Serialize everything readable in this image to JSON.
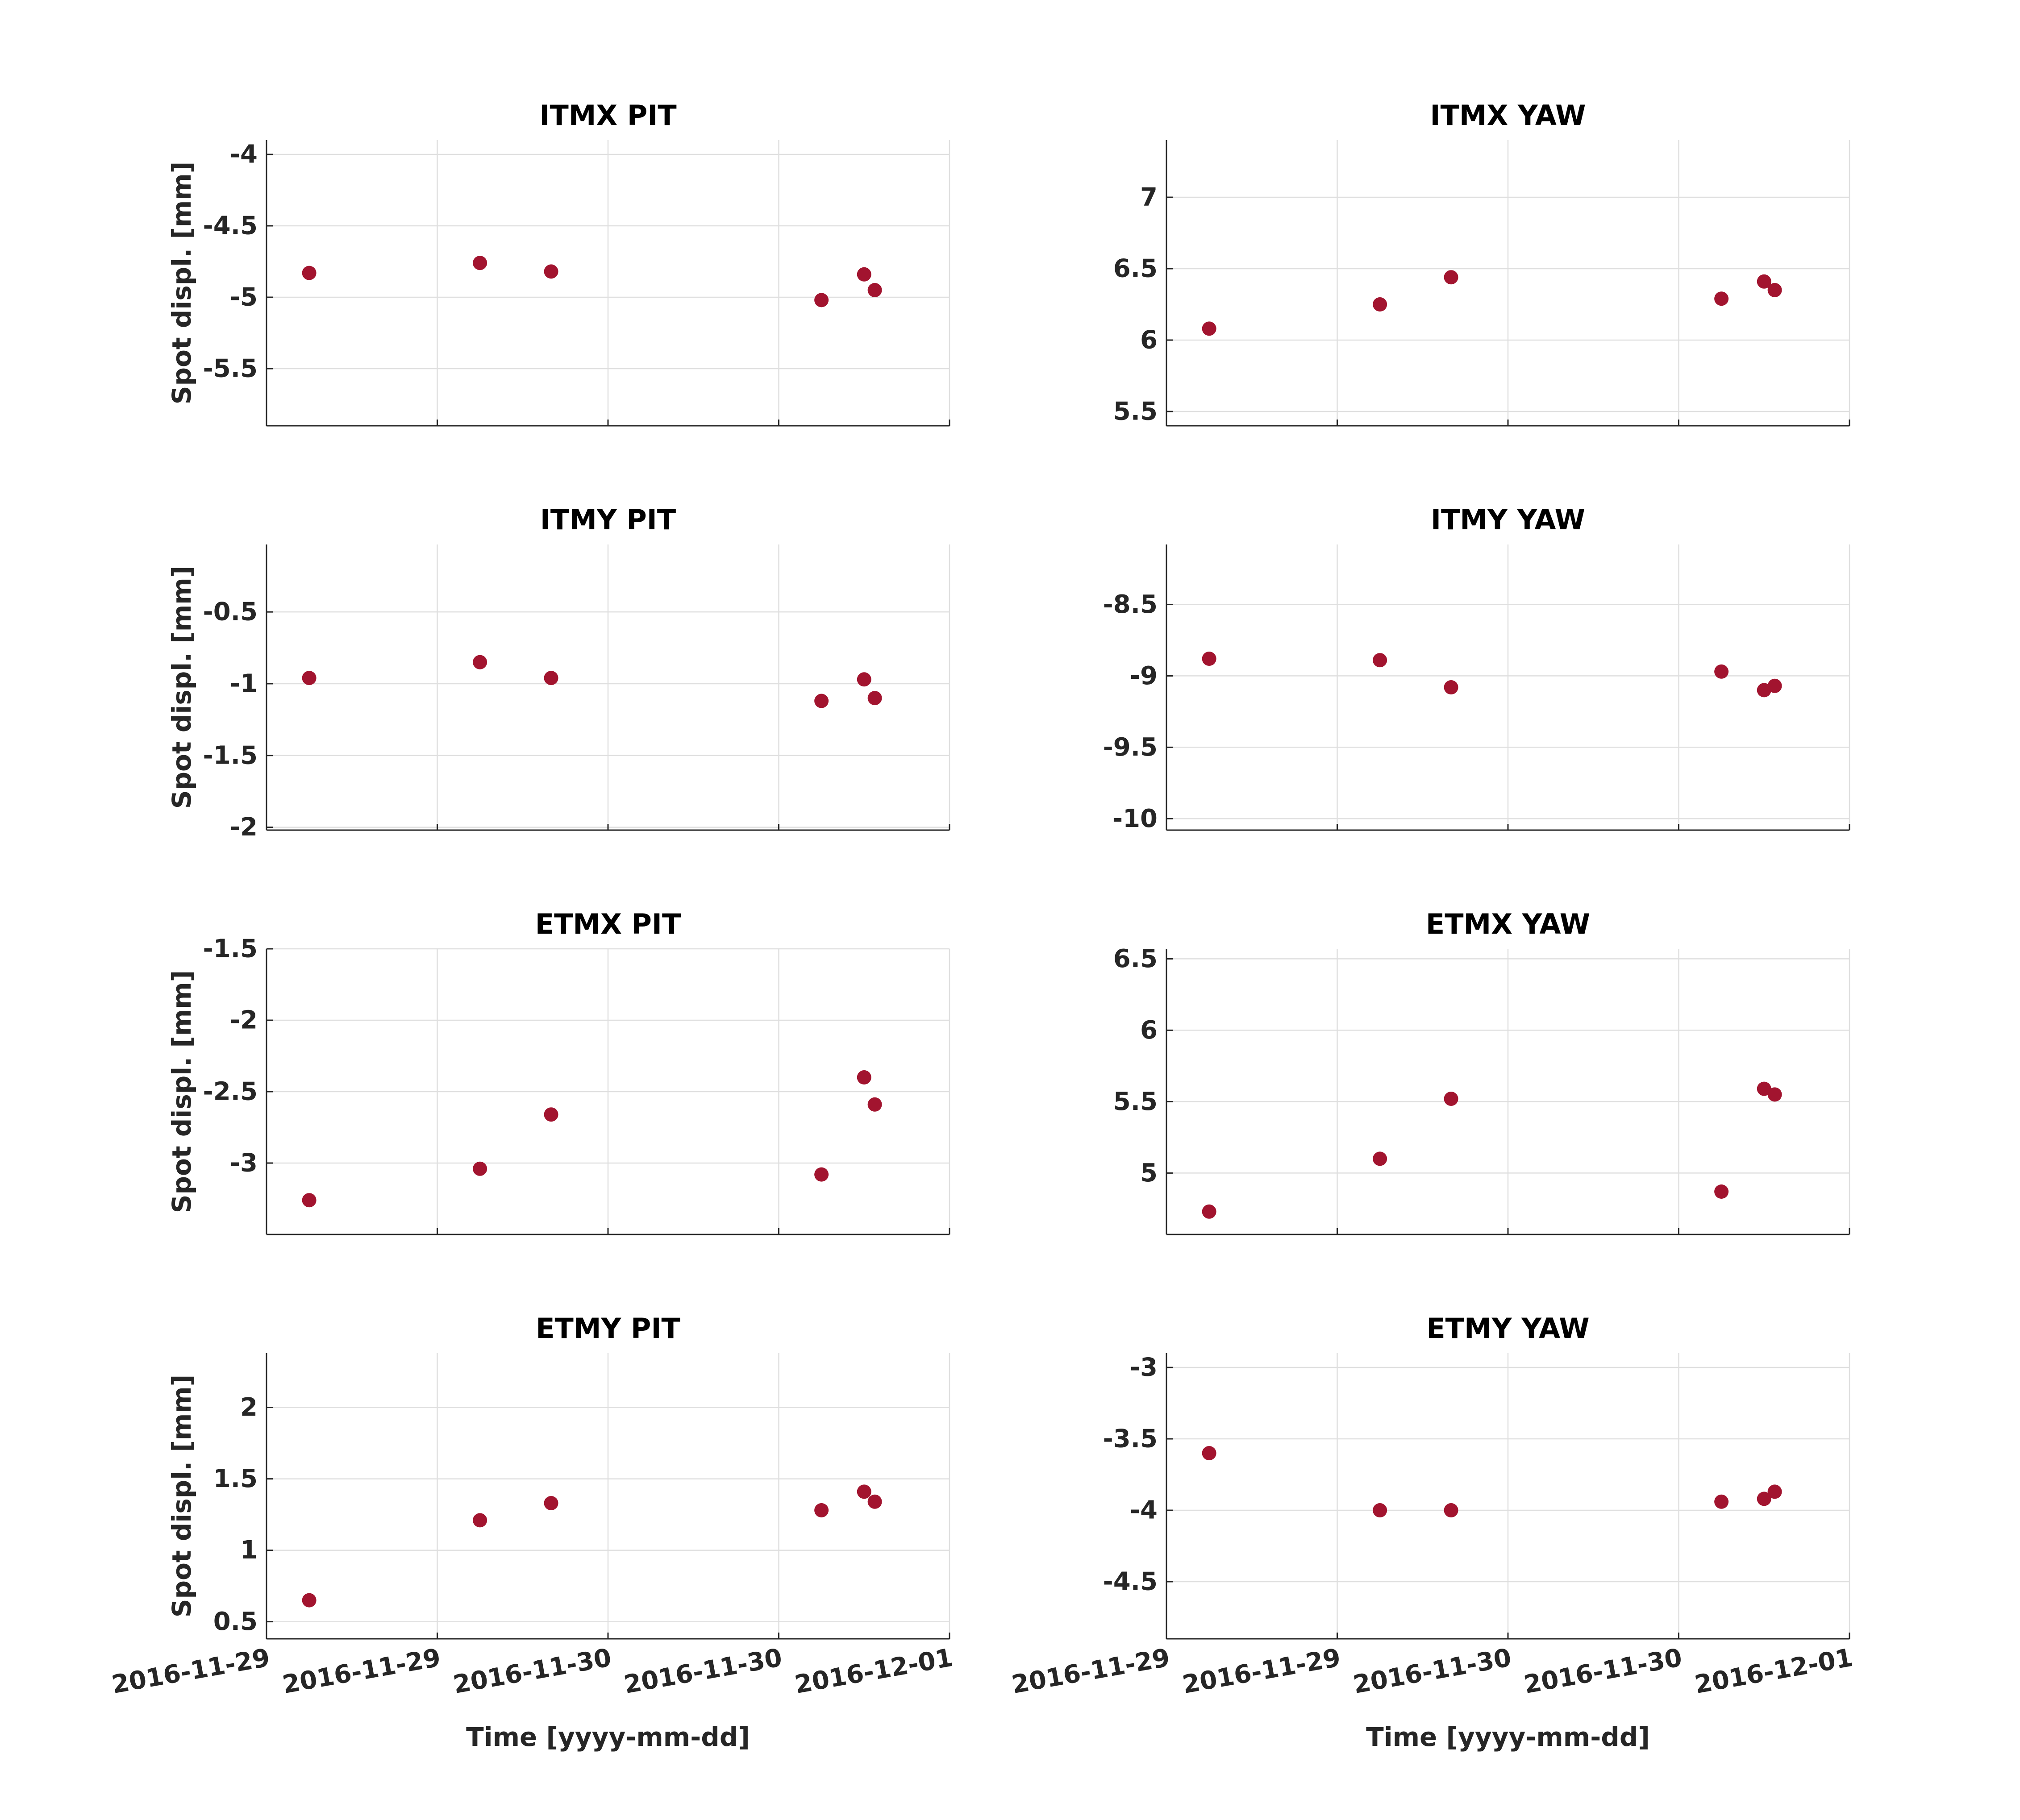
{
  "figure": {
    "marker_color": "#a2142f",
    "grid": true
  },
  "chart_data": [
    {
      "type": "scatter",
      "title": "ITMX PIT",
      "ylabel": "Spot displ. [mm]",
      "xlabel": "",
      "ylim": [
        -5.9,
        -3.9
      ],
      "yticks": [
        -5.5,
        -5,
        -4.5,
        -4
      ],
      "yticklabels": [
        "-5.5",
        "-5",
        "-4.5",
        "-4"
      ],
      "xticklabels": [],
      "series": [
        {
          "x": [
            0.0625,
            0.3125,
            0.4167,
            0.8125,
            0.875,
            0.8906
          ],
          "y": [
            -4.83,
            -4.76,
            -4.82,
            -5.02,
            -4.84,
            -4.95
          ]
        }
      ]
    },
    {
      "type": "scatter",
      "title": "ITMX YAW",
      "ylabel": "",
      "xlabel": "",
      "ylim": [
        5.4,
        7.4
      ],
      "yticks": [
        5.5,
        6,
        6.5,
        7
      ],
      "yticklabels": [
        "5.5",
        "6",
        "6.5",
        "7"
      ],
      "xticklabels": [],
      "series": [
        {
          "x": [
            0.0625,
            0.3125,
            0.4167,
            0.8125,
            0.875,
            0.8906
          ],
          "y": [
            6.08,
            6.25,
            6.44,
            6.29,
            6.41,
            6.35
          ]
        }
      ]
    },
    {
      "type": "scatter",
      "title": "ITMY PIT",
      "ylabel": "Spot displ. [mm]",
      "xlabel": "",
      "ylim": [
        -2.02,
        -0.03
      ],
      "yticks": [
        -2,
        -1.5,
        -1,
        -0.5
      ],
      "yticklabels": [
        "-2",
        "-1.5",
        "-1",
        "-0.5"
      ],
      "xticklabels": [],
      "series": [
        {
          "x": [
            0.0625,
            0.3125,
            0.4167,
            0.8125,
            0.875,
            0.8906
          ],
          "y": [
            -0.96,
            -0.85,
            -0.96,
            -1.12,
            -0.97,
            -1.1
          ]
        }
      ]
    },
    {
      "type": "scatter",
      "title": "ITMY YAW",
      "ylabel": "",
      "xlabel": "",
      "ylim": [
        -10.08,
        -8.08
      ],
      "yticks": [
        -10,
        -9.5,
        -9,
        -8.5
      ],
      "yticklabels": [
        "-10",
        "-9.5",
        "-9",
        "-8.5"
      ],
      "xticklabels": [],
      "series": [
        {
          "x": [
            0.0625,
            0.3125,
            0.4167,
            0.8125,
            0.875,
            0.8906
          ],
          "y": [
            -8.88,
            -8.89,
            -9.08,
            -8.97,
            -9.1,
            -9.07
          ]
        }
      ]
    },
    {
      "type": "scatter",
      "title": "ETMX PIT",
      "ylabel": "Spot displ. [mm]",
      "xlabel": "",
      "ylim": [
        -3.5,
        -1.5
      ],
      "yticks": [
        -3,
        -2.5,
        -2,
        -1.5
      ],
      "yticklabels": [
        "-3",
        "-2.5",
        "-2",
        "-1.5"
      ],
      "xticklabels": [],
      "series": [
        {
          "x": [
            0.0625,
            0.3125,
            0.4167,
            0.8125,
            0.875,
            0.8906
          ],
          "y": [
            -3.26,
            -3.04,
            -2.66,
            -3.08,
            -2.4,
            -2.59
          ]
        }
      ]
    },
    {
      "type": "scatter",
      "title": "ETMX YAW",
      "ylabel": "",
      "xlabel": "",
      "ylim": [
        4.57,
        6.57
      ],
      "yticks": [
        5,
        5.5,
        6,
        6.5
      ],
      "yticklabels": [
        "5",
        "5.5",
        "6",
        "6.5"
      ],
      "xticklabels": [],
      "series": [
        {
          "x": [
            0.0625,
            0.3125,
            0.4167,
            0.8125,
            0.875,
            0.8906
          ],
          "y": [
            4.73,
            5.1,
            5.52,
            4.87,
            5.59,
            5.55
          ]
        }
      ]
    },
    {
      "type": "scatter",
      "title": "ETMY PIT",
      "ylabel": "Spot displ. [mm]",
      "xlabel": "Time [yyyy-mm-dd]",
      "ylim": [
        0.38,
        2.38
      ],
      "yticks": [
        0.5,
        1,
        1.5,
        2
      ],
      "yticklabels": [
        "0.5",
        "1",
        "1.5",
        "2"
      ],
      "xticklabels": [
        "2016-11-29",
        "2016-11-29",
        "2016-11-30",
        "2016-11-30",
        "2016-12-01"
      ],
      "series": [
        {
          "x": [
            0.0625,
            0.3125,
            0.4167,
            0.8125,
            0.875,
            0.8906
          ],
          "y": [
            0.65,
            1.21,
            1.33,
            1.28,
            1.41,
            1.34
          ]
        }
      ]
    },
    {
      "type": "scatter",
      "title": "ETMY YAW",
      "ylabel": "",
      "xlabel": "Time [yyyy-mm-dd]",
      "ylim": [
        -4.9,
        -2.9
      ],
      "yticks": [
        -4.5,
        -4,
        -3.5,
        -3
      ],
      "yticklabels": [
        "-4.5",
        "-4",
        "-3.5",
        "-3"
      ],
      "xticklabels": [
        "2016-11-29",
        "2016-11-29",
        "2016-11-30",
        "2016-11-30",
        "2016-12-01"
      ],
      "series": [
        {
          "x": [
            0.0625,
            0.3125,
            0.4167,
            0.8125,
            0.875,
            0.8906
          ],
          "y": [
            -3.6,
            -4.0,
            -4.0,
            -3.94,
            -3.92,
            -3.87
          ]
        }
      ]
    }
  ]
}
